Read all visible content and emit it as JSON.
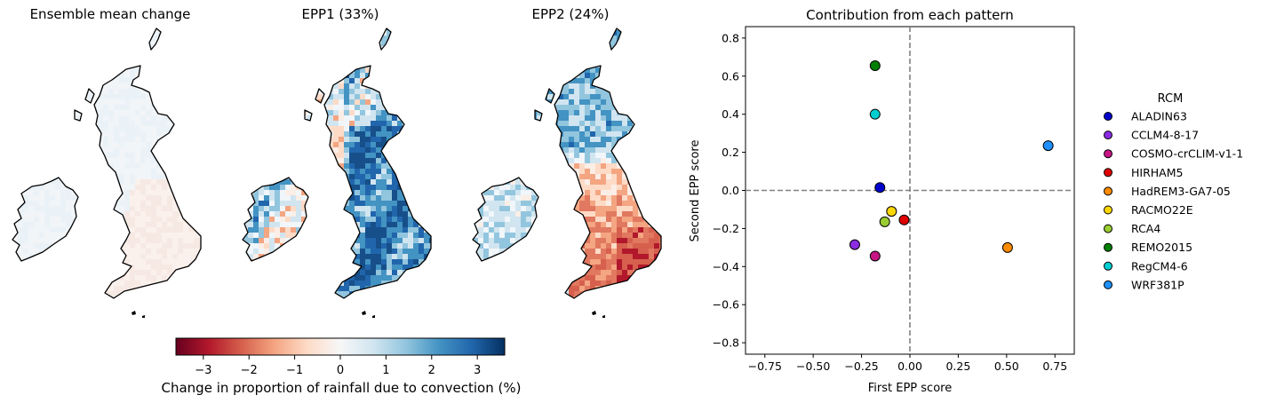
{
  "maps": [
    {
      "title": "Ensemble mean change",
      "pattern": "mean"
    },
    {
      "title": "EPP1 (33%)",
      "pattern": "epp1"
    },
    {
      "title": "EPP2 (24%)",
      "pattern": "epp2"
    }
  ],
  "colorbar": {
    "label": "Change in proportion of rainfall due to convection (%)",
    "range": [
      -3.6,
      3.6
    ],
    "ticks": [
      "−3",
      "−2",
      "−1",
      "0",
      "1",
      "2",
      "3"
    ],
    "tick_values": [
      -3,
      -2,
      -1,
      0,
      1,
      2,
      3
    ],
    "colormap": "RdBu"
  },
  "chart_data": {
    "type": "scatter",
    "title": "Contribution from each pattern",
    "xlabel": "First EPP score",
    "ylabel": "Second EPP score",
    "xlim": [
      -0.85,
      0.85
    ],
    "ylim": [
      -0.86,
      0.86
    ],
    "xticks": [
      -0.75,
      -0.5,
      -0.25,
      0,
      0.25,
      0.5,
      0.75
    ],
    "xtick_labels": [
      "−0.75",
      "−0.50",
      "−0.25",
      "0.00",
      "0.25",
      "0.50",
      "0.75"
    ],
    "yticks": [
      0.8,
      0.6,
      0.4,
      0.2,
      0,
      -0.2,
      -0.4,
      -0.6,
      -0.8
    ],
    "ytick_labels": [
      "0.8",
      "0.6",
      "0.4",
      "0.2",
      "0.0",
      "−0.2",
      "−0.4",
      "−0.6",
      "−0.8"
    ],
    "reference_lines": {
      "x": 0,
      "y": 0,
      "style": "dashed",
      "color": "#808080"
    },
    "legend": {
      "title": "RCM",
      "position": "right"
    },
    "series": [
      {
        "name": "ALADIN63",
        "color": "#0000cd",
        "x": -0.155,
        "y": 0.015
      },
      {
        "name": "CCLM4-8-17",
        "color": "#8a2be2",
        "x": -0.285,
        "y": -0.285
      },
      {
        "name": "COSMO-crCLIM-v1-1",
        "color": "#c71585",
        "x": -0.18,
        "y": -0.345
      },
      {
        "name": "HIRHAM5",
        "color": "#e00000",
        "x": -0.03,
        "y": -0.155
      },
      {
        "name": "HadREM3-GA7-05",
        "color": "#ff8c00",
        "x": 0.505,
        "y": -0.3
      },
      {
        "name": "RACMO22E",
        "color": "#ffd700",
        "x": -0.095,
        "y": -0.11
      },
      {
        "name": "RCA4",
        "color": "#9acd32",
        "x": -0.13,
        "y": -0.165
      },
      {
        "name": "REMO2015",
        "color": "#008000",
        "x": -0.18,
        "y": 0.655
      },
      {
        "name": "RegCM4-6",
        "color": "#00ced1",
        "x": -0.18,
        "y": 0.4
      },
      {
        "name": "WRF381P",
        "color": "#1e90ff",
        "x": 0.715,
        "y": 0.235
      }
    ]
  }
}
